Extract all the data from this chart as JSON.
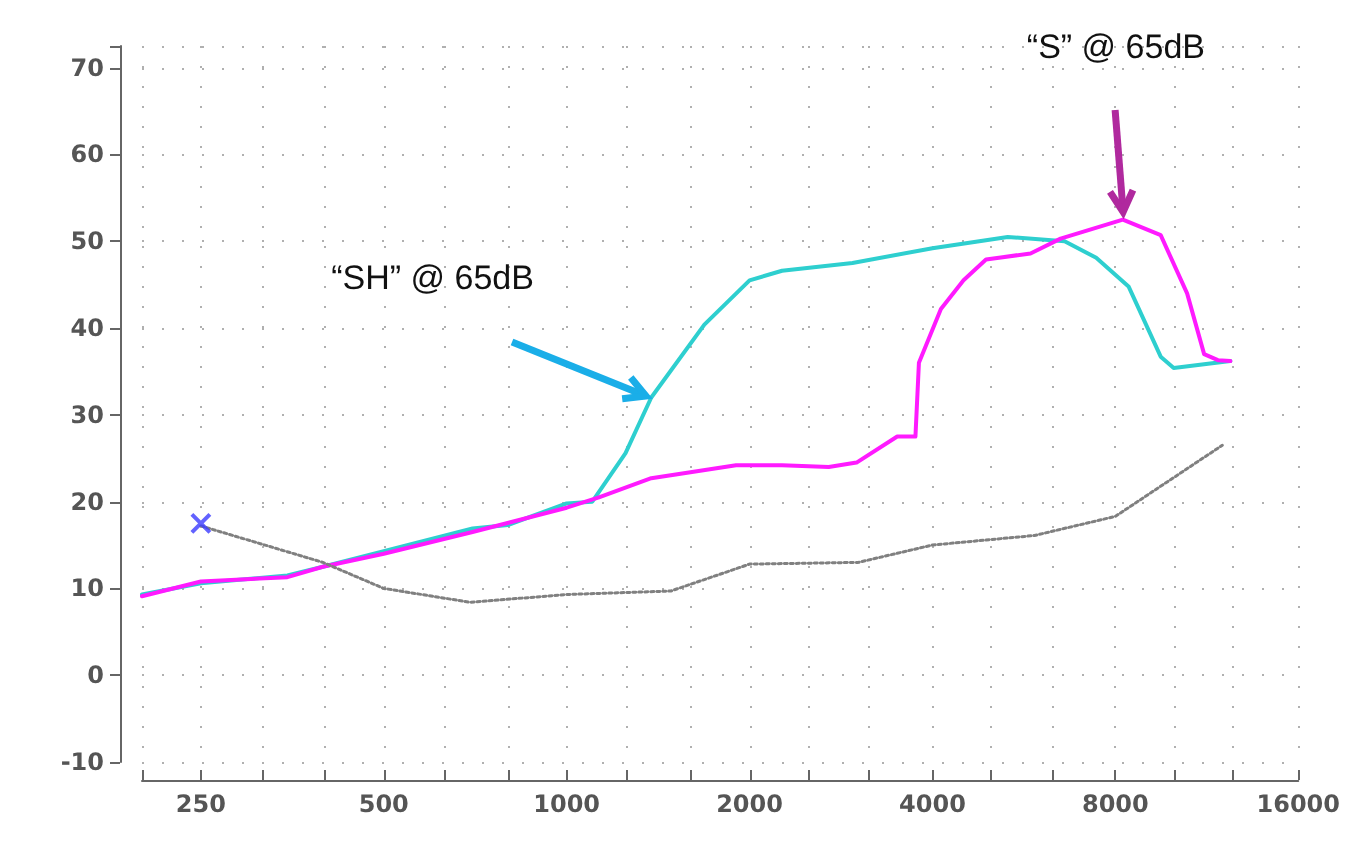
{
  "chart_data": {
    "type": "line",
    "log": "x",
    "xlim": [
      200,
      16000
    ],
    "ylim": [
      -10,
      72.5
    ],
    "xticks": [
      {
        "value": 200,
        "label": null
      },
      250,
      {
        "value": 315,
        "label": null
      },
      {
        "value": 400,
        "label": null
      },
      500,
      {
        "value": 630,
        "label": null
      },
      {
        "value": 800,
        "label": null
      },
      1000,
      {
        "value": 1250,
        "label": null
      },
      {
        "value": 1600,
        "label": null
      },
      2000,
      {
        "value": 2500,
        "label": null
      },
      {
        "value": 3150,
        "label": null
      },
      4000,
      {
        "value": 5000,
        "label": null
      },
      {
        "value": 6300,
        "label": null
      },
      8000,
      {
        "value": 10000,
        "label": null
      },
      {
        "value": 12500,
        "label": null
      },
      16000
    ],
    "yticks": [
      -10,
      0,
      10,
      20,
      30,
      40,
      50,
      60,
      70
    ],
    "grid": true,
    "annotations": [
      {
        "text": "“SH” @ 65dB",
        "x": 1378,
        "y": 32
      },
      {
        "text": "“S” @ 65dB",
        "x": 8230,
        "y": 52.5
      }
    ],
    "series": [
      {
        "color": "#2ecfcf",
        "marker": "none",
        "line_style": "solid",
        "x": [
          200,
          250,
          347,
          397,
          500,
          700,
          800,
          1000,
          1102,
          1250,
          1378,
          1685,
          2000,
          2262,
          2954,
          4000,
          5320,
          6600,
          7440,
          8410,
          9500,
          9980,
          12370
        ],
        "values": [
          9.3,
          10.6,
          11.5,
          12.5,
          14.3,
          16.9,
          17.3,
          19.8,
          20,
          25.6,
          32,
          40.4,
          45.5,
          46.6,
          47.5,
          49.2,
          50.5,
          50,
          48.1,
          44.8,
          36.7,
          35.4,
          36.2
        ]
      },
      {
        "color": "#ff1aff",
        "marker": "none",
        "line_style": "solid",
        "x": [
          200,
          250,
          347,
          397,
          500,
          700,
          1000,
          1130,
          1378,
          1900,
          2262,
          2700,
          3000,
          3500,
          3750,
          3800,
          4130,
          4500,
          4900,
          5800,
          6500,
          8230,
          9500,
          10500,
          11200,
          11800,
          12370
        ],
        "values": [
          9.1,
          10.8,
          11.3,
          12.5,
          14,
          16.5,
          19.3,
          20.5,
          22.7,
          24.2,
          24.2,
          24,
          24.5,
          27.5,
          27.5,
          36,
          42.2,
          45.5,
          47.9,
          48.6,
          50.3,
          52.5,
          50.7,
          44,
          37,
          36.3,
          36.2
        ]
      },
      {
        "color": "#808080",
        "marker": "none",
        "line_style": "dotted",
        "x": [
          250,
          397,
          500,
          694,
          1000,
          1484,
          2000,
          3020,
          4000,
          5890,
          8000,
          12000
        ],
        "values": [
          17.2,
          13,
          10,
          8.4,
          9.3,
          9.7,
          12.8,
          13,
          15,
          16.1,
          18.3,
          26.5
        ]
      },
      {
        "type": "scatter",
        "color": "#3b3bff",
        "marker": "cross",
        "x": [
          250
        ],
        "values": [
          17.5
        ]
      }
    ]
  }
}
